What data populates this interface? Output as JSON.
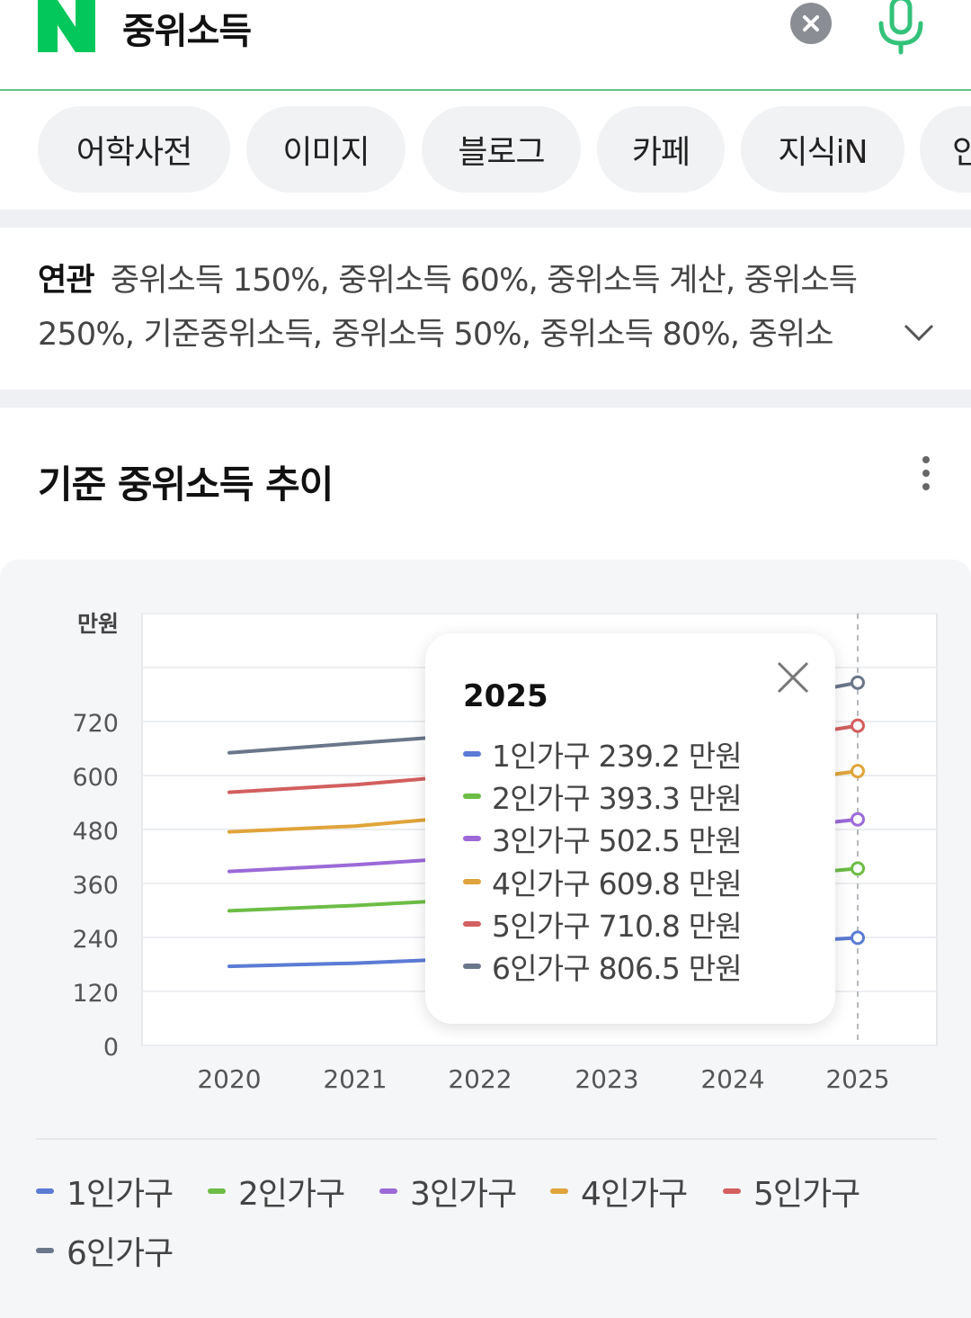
{
  "header": {
    "query": "중위소득",
    "colors": {
      "brand": "#03c75a",
      "divider": "#62c584",
      "mic": "#33c27a"
    }
  },
  "tabs": [
    {
      "label": "어학사전"
    },
    {
      "label": "이미지"
    },
    {
      "label": "블로그"
    },
    {
      "label": "카페"
    },
    {
      "label": "지식iN"
    },
    {
      "label": "인"
    }
  ],
  "related": {
    "label": "연관",
    "text": "중위소득 150%, 중위소득 60%, 중위소득 계산, 중위소득 250%, 기준중위소득, 중위소득 50%, 중위소득 80%, 중위소"
  },
  "section": {
    "title": "기준 중위소득 추이"
  },
  "tooltip": {
    "year": "2025",
    "rows": [
      {
        "label": "1인가구 239.2 만원"
      },
      {
        "label": "2인가구 393.3 만원"
      },
      {
        "label": "3인가구 502.5 만원"
      },
      {
        "label": "4인가구 609.8 만원"
      },
      {
        "label": "5인가구 710.8 만원"
      },
      {
        "label": "6인가구 806.5 만원"
      }
    ]
  },
  "legend": [
    {
      "label": "1인가구"
    },
    {
      "label": "2인가구"
    },
    {
      "label": "3인가구"
    },
    {
      "label": "4인가구"
    },
    {
      "label": "5인가구"
    },
    {
      "label": "6인가구"
    }
  ],
  "chart_data": {
    "type": "line",
    "ylabel": "만원",
    "x": [
      "2020",
      "2021",
      "2022",
      "2023",
      "2024",
      "2025"
    ],
    "yticks": [
      "0",
      "120",
      "240",
      "360",
      "480",
      "600",
      "720"
    ],
    "ylim": [
      0,
      960
    ],
    "grid": true,
    "selected_x": "2025",
    "series": [
      {
        "name": "1인가구",
        "color": "#5b7bd5",
        "values": [
          175.7,
          182.8,
          194.5,
          207.8,
          222.8,
          239.2
        ]
      },
      {
        "name": "2인가구",
        "color": "#6cbd45",
        "values": [
          299.1,
          311.0,
          326.0,
          345.7,
          368.2,
          393.3
        ]
      },
      {
        "name": "3인가구",
        "color": "#9b6ad8",
        "values": [
          386.9,
          401.5,
          419.5,
          444.6,
          471.4,
          502.5
        ]
      },
      {
        "name": "4인가구",
        "color": "#e0a43a",
        "values": [
          474.9,
          487.6,
          512.1,
          540.1,
          573.0,
          609.8
        ]
      },
      {
        "name": "5인가구",
        "color": "#d35f5f",
        "values": [
          562.8,
          579.6,
          603.2,
          633.0,
          666.3,
          710.8
        ]
      },
      {
        "name": "6인가구",
        "color": "#6a7689",
        "values": [
          650.6,
          671.8,
          692.1,
          724.4,
          754.4,
          806.5
        ]
      }
    ]
  }
}
